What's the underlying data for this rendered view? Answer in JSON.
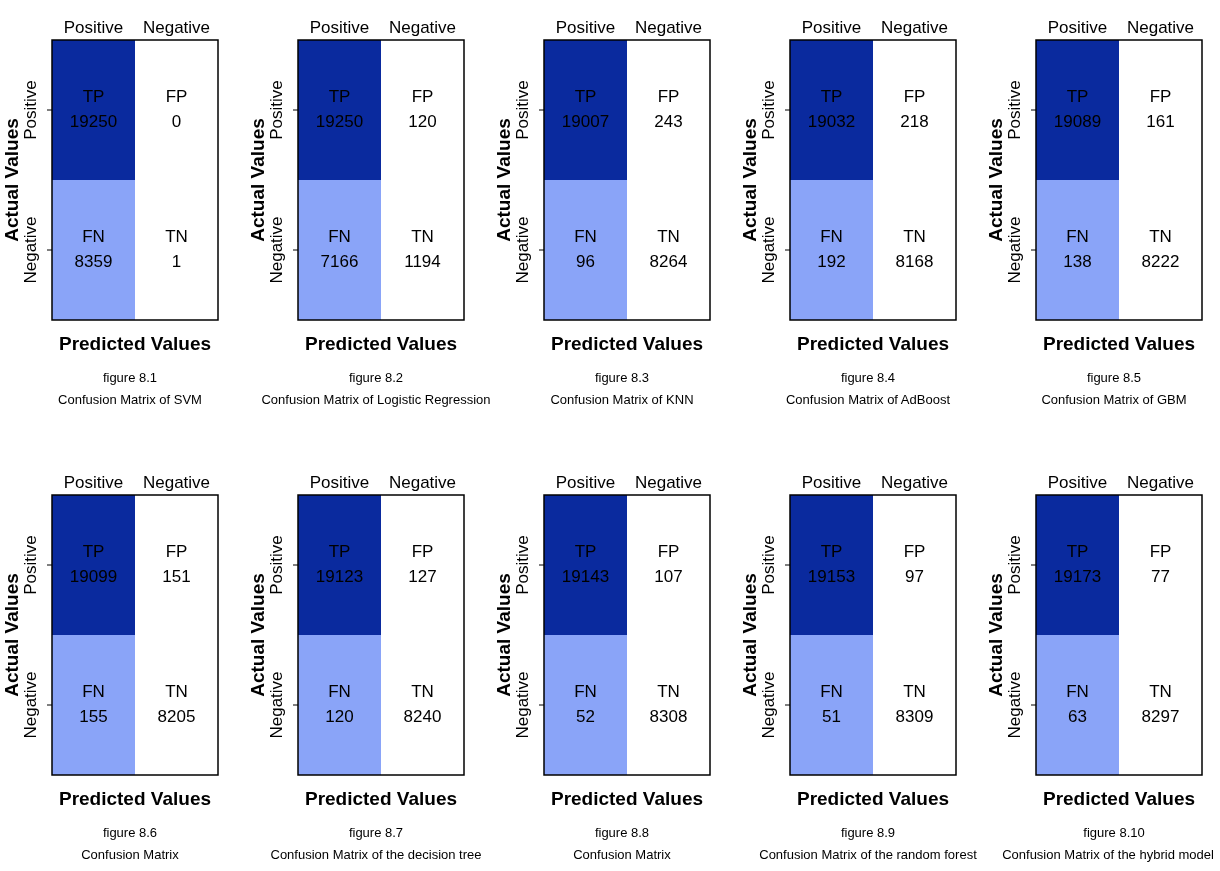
{
  "chart_data": [
    {
      "type": "heatmap",
      "categories": [
        "Positive",
        "Negative"
      ],
      "y_categories": [
        "Positive",
        "Negative"
      ],
      "cells": [
        [
          19250,
          0
        ],
        [
          8359,
          1
        ]
      ],
      "colors": [
        [
          "#0a2a9e",
          "#ffffff"
        ],
        [
          "#8aa4f8",
          "#ffffff"
        ]
      ],
      "xlabel": "Predicted Values",
      "ylabel": "Actual Values",
      "data_labels": true,
      "annotations": [
        "TP",
        "FP",
        "FN",
        "TN",
        "figure 8.1",
        "Confusion Matrix of SVM"
      ]
    },
    {
      "type": "heatmap",
      "categories": [
        "Positive",
        "Negative"
      ],
      "y_categories": [
        "Positive",
        "Negative"
      ],
      "cells": [
        [
          19250,
          120
        ],
        [
          7166,
          1194
        ]
      ],
      "colors": [
        [
          "#0a2a9e",
          "#ffffff"
        ],
        [
          "#8aa4f8",
          "#ffffff"
        ]
      ],
      "xlabel": "Predicted Values",
      "ylabel": "Actual Values",
      "data_labels": true,
      "annotations": [
        "TP",
        "FP",
        "FN",
        "TN",
        "figure 8.2",
        "Confusion Matrix of Logistic Regression"
      ]
    },
    {
      "type": "heatmap",
      "categories": [
        "Positive",
        "Negative"
      ],
      "y_categories": [
        "Positive",
        "Negative"
      ],
      "cells": [
        [
          19007,
          243
        ],
        [
          96,
          8264
        ]
      ],
      "colors": [
        [
          "#0a2a9e",
          "#ffffff"
        ],
        [
          "#8aa4f8",
          "#ffffff"
        ]
      ],
      "xlabel": "Predicted Values",
      "ylabel": "Actual Values",
      "data_labels": true,
      "annotations": [
        "TP",
        "FP",
        "FN",
        "TN",
        "figure 8.3",
        "Confusion Matrix of KNN"
      ]
    },
    {
      "type": "heatmap",
      "categories": [
        "Positive",
        "Negative"
      ],
      "y_categories": [
        "Positive",
        "Negative"
      ],
      "cells": [
        [
          19032,
          218
        ],
        [
          192,
          8168
        ]
      ],
      "colors": [
        [
          "#0a2a9e",
          "#ffffff"
        ],
        [
          "#8aa4f8",
          "#ffffff"
        ]
      ],
      "xlabel": "Predicted Values",
      "ylabel": "Actual Values",
      "data_labels": true,
      "annotations": [
        "TP",
        "FP",
        "FN",
        "TN",
        "figure 8.4",
        "Confusion Matrix of AdBoost"
      ]
    },
    {
      "type": "heatmap",
      "categories": [
        "Positive",
        "Negative"
      ],
      "y_categories": [
        "Positive",
        "Negative"
      ],
      "cells": [
        [
          19089,
          161
        ],
        [
          138,
          8222
        ]
      ],
      "colors": [
        [
          "#0a2a9e",
          "#ffffff"
        ],
        [
          "#8aa4f8",
          "#ffffff"
        ]
      ],
      "xlabel": "Predicted Values",
      "ylabel": "Actual Values",
      "data_labels": true,
      "annotations": [
        "TP",
        "FP",
        "FN",
        "TN",
        "figure 8.5",
        "Confusion Matrix of GBM"
      ]
    },
    {
      "type": "heatmap",
      "categories": [
        "Positive",
        "Negative"
      ],
      "y_categories": [
        "Positive",
        "Negative"
      ],
      "cells": [
        [
          19099,
          151
        ],
        [
          155,
          8205
        ]
      ],
      "colors": [
        [
          "#0a2a9e",
          "#ffffff"
        ],
        [
          "#8aa4f8",
          "#ffffff"
        ]
      ],
      "xlabel": "Predicted Values",
      "ylabel": "Actual Values",
      "data_labels": true,
      "annotations": [
        "TP",
        "FP",
        "FN",
        "TN",
        "figure 8.6",
        "Confusion Matrix"
      ]
    },
    {
      "type": "heatmap",
      "categories": [
        "Positive",
        "Negative"
      ],
      "y_categories": [
        "Positive",
        "Negative"
      ],
      "cells": [
        [
          19123,
          127
        ],
        [
          120,
          8240
        ]
      ],
      "colors": [
        [
          "#0a2a9e",
          "#ffffff"
        ],
        [
          "#8aa4f8",
          "#ffffff"
        ]
      ],
      "xlabel": "Predicted Values",
      "ylabel": "Actual Values",
      "data_labels": true,
      "annotations": [
        "TP",
        "FP",
        "FN",
        "TN",
        "figure 8.7",
        "Confusion Matrix of the decision tree"
      ]
    },
    {
      "type": "heatmap",
      "categories": [
        "Positive",
        "Negative"
      ],
      "y_categories": [
        "Positive",
        "Negative"
      ],
      "cells": [
        [
          19143,
          107
        ],
        [
          52,
          8308
        ]
      ],
      "colors": [
        [
          "#0a2a9e",
          "#ffffff"
        ],
        [
          "#8aa4f8",
          "#ffffff"
        ]
      ],
      "xlabel": "Predicted Values",
      "ylabel": "Actual Values",
      "data_labels": true,
      "annotations": [
        "TP",
        "FP",
        "FN",
        "TN",
        "figure 8.8",
        "Confusion Matrix"
      ]
    },
    {
      "type": "heatmap",
      "categories": [
        "Positive",
        "Negative"
      ],
      "y_categories": [
        "Positive",
        "Negative"
      ],
      "cells": [
        [
          19153,
          97
        ],
        [
          51,
          8309
        ]
      ],
      "colors": [
        [
          "#0a2a9e",
          "#ffffff"
        ],
        [
          "#8aa4f8",
          "#ffffff"
        ]
      ],
      "xlabel": "Predicted Values",
      "ylabel": "Actual Values",
      "data_labels": true,
      "annotations": [
        "TP",
        "FP",
        "FN",
        "TN",
        "figure 8.9",
        "Confusion Matrix of the random forest"
      ]
    },
    {
      "type": "heatmap",
      "categories": [
        "Positive",
        "Negative"
      ],
      "y_categories": [
        "Positive",
        "Negative"
      ],
      "cells": [
        [
          19173,
          77
        ],
        [
          63,
          8297
        ]
      ],
      "colors": [
        [
          "#0a2a9e",
          "#ffffff"
        ],
        [
          "#8aa4f8",
          "#ffffff"
        ]
      ],
      "xlabel": "Predicted Values",
      "ylabel": "Actual Values",
      "data_labels": true,
      "annotations": [
        "TP",
        "FP",
        "FN",
        "TN",
        "figure 8.10",
        "Confusion Matrix of the hybrid model"
      ]
    }
  ]
}
